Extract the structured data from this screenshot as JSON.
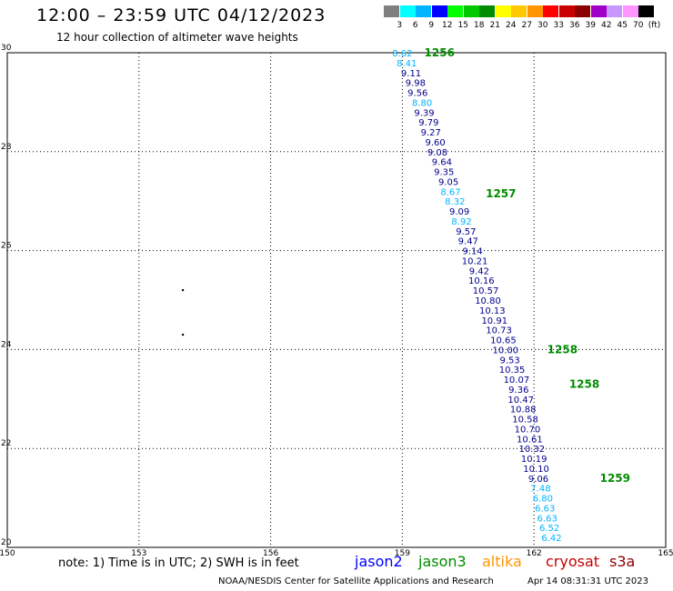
{
  "header": {
    "title": "12:00 – 23:59 UTC 04/12/2023",
    "subtitle": "12 hour collection of altimeter wave heights"
  },
  "legend": {
    "labels": [
      "3",
      "6",
      "9",
      "12",
      "15",
      "18",
      "21",
      "24",
      "27",
      "30",
      "33",
      "36",
      "39",
      "42",
      "45",
      "70"
    ],
    "unit": "(ft)",
    "colors": [
      "#7f7f7f",
      "#00ffff",
      "#00b4ff",
      "#0000ff",
      "#00ff00",
      "#00c800",
      "#008c00",
      "#ffff00",
      "#ffc800",
      "#ff9600",
      "#ff0000",
      "#c80000",
      "#8c0000",
      "#a000c8",
      "#c896ff",
      "#ff96ff",
      "#000000"
    ]
  },
  "chart_data": {
    "type": "scatter",
    "title": "12:00 – 23:59 UTC 04/12/2023",
    "subtitle": "12 hour collection of altimeter wave heights",
    "xlabel": "",
    "ylabel": "",
    "xlim": [
      150,
      165
    ],
    "ylim": [
      20,
      30
    ],
    "x_ticks": [
      "150",
      "153",
      "156",
      "159",
      "162",
      "165"
    ],
    "y_ticks": [
      "20",
      "22",
      "24",
      "26",
      "28",
      "30"
    ],
    "y_tick_labels": [
      "20",
      "22",
      "24",
      "26",
      "28",
      "30"
    ],
    "grid": true,
    "points": [
      {
        "lon": 159.0,
        "lat": 30.0,
        "swh": "8.62"
      },
      {
        "lon": 159.1,
        "lat": 29.8,
        "swh": "8.41"
      },
      {
        "lon": 159.2,
        "lat": 29.6,
        "swh": "9.11"
      },
      {
        "lon": 159.3,
        "lat": 29.4,
        "swh": "9.98"
      },
      {
        "lon": 159.35,
        "lat": 29.2,
        "swh": "9.56"
      },
      {
        "lon": 159.45,
        "lat": 29.0,
        "swh": "8.80"
      },
      {
        "lon": 159.5,
        "lat": 28.8,
        "swh": "9.39"
      },
      {
        "lon": 159.6,
        "lat": 28.6,
        "swh": "9.79"
      },
      {
        "lon": 159.65,
        "lat": 28.4,
        "swh": "9.27"
      },
      {
        "lon": 159.75,
        "lat": 28.2,
        "swh": "9.60"
      },
      {
        "lon": 159.8,
        "lat": 28.0,
        "swh": "9.08"
      },
      {
        "lon": 159.9,
        "lat": 27.8,
        "swh": "9.64"
      },
      {
        "lon": 159.95,
        "lat": 27.6,
        "swh": "9.35"
      },
      {
        "lon": 160.05,
        "lat": 27.4,
        "swh": "9.05"
      },
      {
        "lon": 160.1,
        "lat": 27.2,
        "swh": "8.67"
      },
      {
        "lon": 160.2,
        "lat": 27.0,
        "swh": "8.32"
      },
      {
        "lon": 160.3,
        "lat": 26.8,
        "swh": "9.09"
      },
      {
        "lon": 160.35,
        "lat": 26.6,
        "swh": "8.92"
      },
      {
        "lon": 160.45,
        "lat": 26.4,
        "swh": "9.57"
      },
      {
        "lon": 160.5,
        "lat": 26.2,
        "swh": "9.47"
      },
      {
        "lon": 160.6,
        "lat": 26.0,
        "swh": "9.14"
      },
      {
        "lon": 160.65,
        "lat": 25.8,
        "swh": "10.21"
      },
      {
        "lon": 160.75,
        "lat": 25.6,
        "swh": "9.42"
      },
      {
        "lon": 160.8,
        "lat": 25.4,
        "swh": "10.16"
      },
      {
        "lon": 160.9,
        "lat": 25.2,
        "swh": "10.57"
      },
      {
        "lon": 160.95,
        "lat": 25.0,
        "swh": "10.80"
      },
      {
        "lon": 161.05,
        "lat": 24.8,
        "swh": "10.13"
      },
      {
        "lon": 161.1,
        "lat": 24.6,
        "swh": "10.91"
      },
      {
        "lon": 161.2,
        "lat": 24.4,
        "swh": "10.73"
      },
      {
        "lon": 161.3,
        "lat": 24.2,
        "swh": "10.65"
      },
      {
        "lon": 161.35,
        "lat": 24.0,
        "swh": "10.00"
      },
      {
        "lon": 161.45,
        "lat": 23.8,
        "swh": "9.53"
      },
      {
        "lon": 161.5,
        "lat": 23.6,
        "swh": "10.35"
      },
      {
        "lon": 161.6,
        "lat": 23.4,
        "swh": "10.07"
      },
      {
        "lon": 161.65,
        "lat": 23.2,
        "swh": "9.36"
      },
      {
        "lon": 161.7,
        "lat": 23.0,
        "swh": "10.47"
      },
      {
        "lon": 161.75,
        "lat": 22.8,
        "swh": "10.88"
      },
      {
        "lon": 161.8,
        "lat": 22.6,
        "swh": "10.58"
      },
      {
        "lon": 161.85,
        "lat": 22.4,
        "swh": "10.70"
      },
      {
        "lon": 161.9,
        "lat": 22.2,
        "swh": "10.61"
      },
      {
        "lon": 161.95,
        "lat": 22.0,
        "swh": "10.32"
      },
      {
        "lon": 162.0,
        "lat": 21.8,
        "swh": "10.19"
      },
      {
        "lon": 162.05,
        "lat": 21.6,
        "swh": "10.10"
      },
      {
        "lon": 162.1,
        "lat": 21.4,
        "swh": "9.06"
      },
      {
        "lon": 162.15,
        "lat": 21.2,
        "swh": "7.48"
      },
      {
        "lon": 162.2,
        "lat": 21.0,
        "swh": "6.80"
      },
      {
        "lon": 162.25,
        "lat": 20.8,
        "swh": "6.63"
      },
      {
        "lon": 162.3,
        "lat": 20.6,
        "swh": "6.63"
      },
      {
        "lon": 162.35,
        "lat": 20.4,
        "swh": "6.52"
      },
      {
        "lon": 162.4,
        "lat": 20.2,
        "swh": "6.42"
      }
    ],
    "pass_labels": [
      {
        "lon": 159.5,
        "lat": 30.0,
        "text": "1256"
      },
      {
        "lon": 160.9,
        "lat": 27.15,
        "text": "1257"
      },
      {
        "lon": 162.3,
        "lat": 24.0,
        "text": "1258"
      },
      {
        "lon": 162.8,
        "lat": 23.3,
        "text": "1258"
      },
      {
        "lon": 163.5,
        "lat": 21.4,
        "text": "1259"
      }
    ],
    "markers": [
      {
        "lon": 154.0,
        "lat": 25.2
      },
      {
        "lon": 154.0,
        "lat": 24.3
      }
    ]
  },
  "footer": {
    "note": "note:  1) Time is in UTC;  2) SWH is in feet",
    "satellites": [
      {
        "name": "jason2",
        "color": "#0000ff"
      },
      {
        "name": "jason3",
        "color": "#008c00"
      },
      {
        "name": "altika",
        "color": "#ff9600"
      },
      {
        "name": "cryosat",
        "color": "#c80000"
      },
      {
        "name": "s3a",
        "color": "#8c0000"
      }
    ],
    "credit": "NOAA/NESDIS Center for Satellite Applications and Research",
    "timestamp": "Apr 14 08:31:31 UTC 2023"
  }
}
